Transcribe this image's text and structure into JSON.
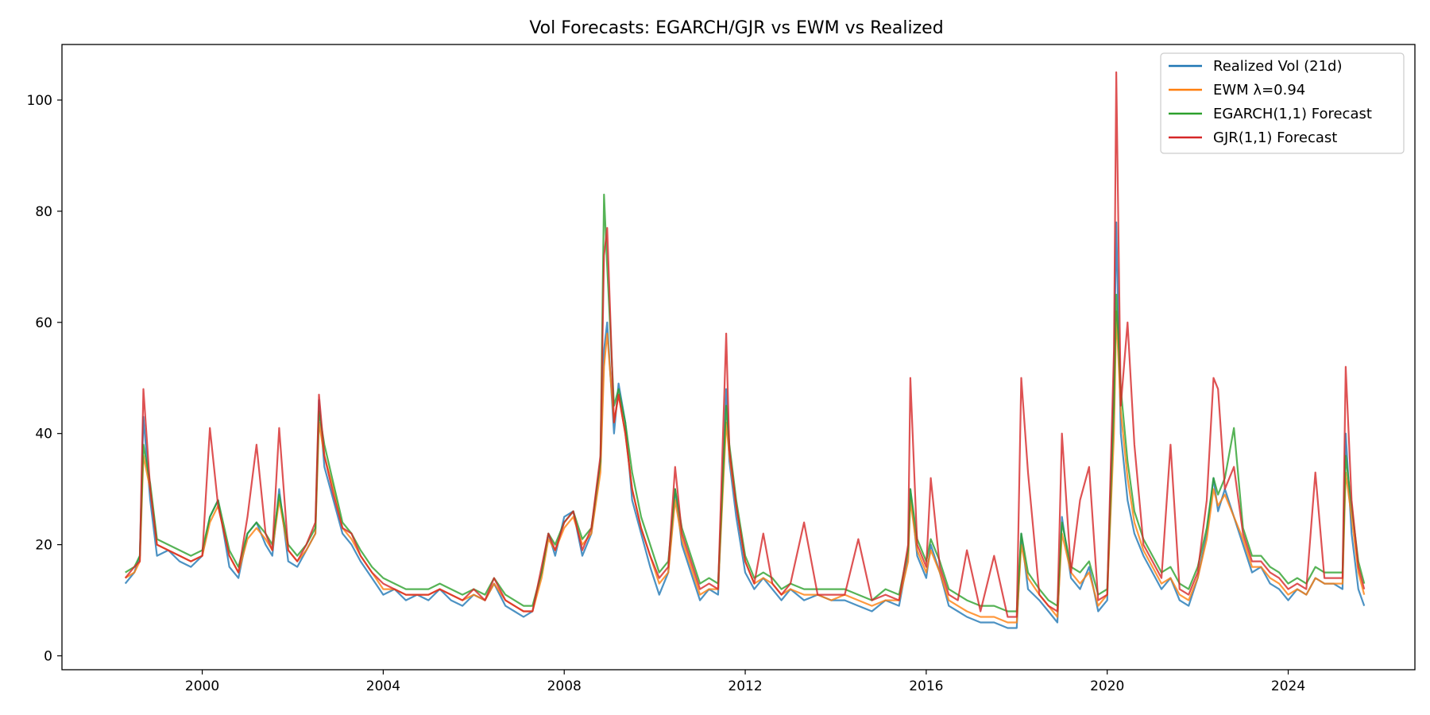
{
  "chart_data": {
    "type": "line",
    "title": "Vol Forecasts: EGARCH/GJR vs EWM vs Realized",
    "xlabel": "",
    "ylabel": "",
    "xlim": [
      1996.9,
      2026.8
    ],
    "ylim": [
      -2.5,
      110.0
    ],
    "xticks": [
      2000,
      2004,
      2008,
      2012,
      2016,
      2020,
      2024
    ],
    "xtick_labels": [
      "2000",
      "2004",
      "2008",
      "2012",
      "2016",
      "2020",
      "2024"
    ],
    "yticks": [
      0,
      20,
      40,
      60,
      80,
      100
    ],
    "ytick_labels": [
      "0",
      "20",
      "40",
      "60",
      "80",
      "100"
    ],
    "grid": false,
    "legend_position": "top-right",
    "x": [
      1998.3,
      1998.5,
      1998.62,
      1998.7,
      1998.85,
      1999.0,
      1999.25,
      1999.5,
      1999.75,
      2000.0,
      2000.17,
      2000.35,
      2000.6,
      2000.8,
      2001.0,
      2001.2,
      2001.4,
      2001.55,
      2001.7,
      2001.9,
      2002.1,
      2002.3,
      2002.5,
      2002.58,
      2002.7,
      2002.9,
      2003.1,
      2003.3,
      2003.5,
      2003.75,
      2004.0,
      2004.25,
      2004.5,
      2004.75,
      2005.0,
      2005.25,
      2005.5,
      2005.75,
      2006.0,
      2006.25,
      2006.45,
      2006.7,
      2006.9,
      2007.1,
      2007.3,
      2007.5,
      2007.65,
      2007.8,
      2008.0,
      2008.2,
      2008.4,
      2008.6,
      2008.8,
      2008.88,
      2008.95,
      2009.1,
      2009.2,
      2009.35,
      2009.5,
      2009.7,
      2009.9,
      2010.1,
      2010.3,
      2010.45,
      2010.6,
      2010.8,
      2011.0,
      2011.2,
      2011.4,
      2011.58,
      2011.65,
      2011.8,
      2012.0,
      2012.2,
      2012.4,
      2012.6,
      2012.8,
      2013.0,
      2013.3,
      2013.6,
      2013.9,
      2014.2,
      2014.5,
      2014.8,
      2015.1,
      2015.4,
      2015.6,
      2015.65,
      2015.8,
      2016.0,
      2016.1,
      2016.3,
      2016.5,
      2016.7,
      2016.9,
      2017.2,
      2017.5,
      2017.8,
      2018.0,
      2018.1,
      2018.25,
      2018.5,
      2018.7,
      2018.9,
      2019.0,
      2019.2,
      2019.4,
      2019.6,
      2019.8,
      2020.0,
      2020.15,
      2020.2,
      2020.3,
      2020.45,
      2020.6,
      2020.8,
      2021.0,
      2021.2,
      2021.4,
      2021.6,
      2021.8,
      2022.0,
      2022.2,
      2022.35,
      2022.45,
      2022.6,
      2022.8,
      2023.0,
      2023.2,
      2023.4,
      2023.6,
      2023.8,
      2024.0,
      2024.2,
      2024.4,
      2024.6,
      2024.8,
      2025.0,
      2025.2,
      2025.27,
      2025.4,
      2025.55,
      2025.68
    ],
    "series": [
      {
        "name": "Realized Vol (21d)",
        "color": "#1f77b4",
        "values": [
          13,
          15,
          18,
          43,
          28,
          18,
          19,
          17,
          16,
          18,
          25,
          28,
          16,
          14,
          22,
          24,
          20,
          18,
          30,
          17,
          16,
          19,
          22,
          46,
          34,
          28,
          22,
          20,
          17,
          14,
          11,
          12,
          10,
          11,
          10,
          12,
          10,
          9,
          11,
          10,
          13,
          9,
          8,
          7,
          8,
          15,
          22,
          18,
          25,
          26,
          18,
          22,
          35,
          55,
          60,
          40,
          49,
          42,
          28,
          22,
          16,
          11,
          15,
          30,
          20,
          15,
          10,
          12,
          11,
          48,
          35,
          25,
          15,
          12,
          14,
          12,
          10,
          12,
          10,
          11,
          10,
          10,
          9,
          8,
          10,
          9,
          18,
          30,
          18,
          14,
          20,
          15,
          9,
          8,
          7,
          6,
          6,
          5,
          5,
          22,
          12,
          10,
          8,
          6,
          25,
          14,
          12,
          16,
          8,
          10,
          50,
          78,
          40,
          28,
          22,
          18,
          15,
          12,
          14,
          10,
          9,
          14,
          22,
          32,
          26,
          30,
          25,
          20,
          15,
          16,
          13,
          12,
          10,
          12,
          11,
          14,
          13,
          13,
          12,
          40,
          22,
          12,
          9
        ]
      },
      {
        "name": "EWM λ=0.94",
        "color": "#ff7f0e",
        "values": [
          14,
          15,
          17,
          36,
          30,
          20,
          19,
          18,
          17,
          18,
          24,
          27,
          18,
          15,
          21,
          23,
          21,
          19,
          28,
          19,
          17,
          19,
          22,
          42,
          36,
          30,
          23,
          21,
          18,
          15,
          12,
          12,
          11,
          11,
          11,
          12,
          11,
          10,
          11,
          10,
          13,
          10,
          9,
          8,
          8,
          14,
          21,
          19,
          23,
          25,
          20,
          22,
          33,
          52,
          58,
          42,
          47,
          40,
          30,
          23,
          18,
          13,
          15,
          28,
          21,
          16,
          11,
          12,
          12,
          42,
          36,
          27,
          17,
          13,
          14,
          13,
          11,
          12,
          11,
          11,
          10,
          11,
          10,
          9,
          10,
          10,
          17,
          28,
          19,
          15,
          19,
          15,
          10,
          9,
          8,
          7,
          7,
          6,
          6,
          20,
          14,
          11,
          9,
          7,
          22,
          15,
          13,
          15,
          9,
          11,
          40,
          62,
          44,
          32,
          24,
          19,
          16,
          13,
          14,
          11,
          10,
          14,
          21,
          30,
          27,
          29,
          25,
          21,
          16,
          16,
          14,
          13,
          11,
          12,
          11,
          14,
          13,
          13,
          13,
          33,
          25,
          15,
          11
        ]
      },
      {
        "name": "EGARCH(1,1) Forecast",
        "color": "#2ca02c",
        "values": [
          15,
          16,
          18,
          38,
          31,
          21,
          20,
          19,
          18,
          19,
          25,
          28,
          19,
          16,
          22,
          24,
          22,
          20,
          29,
          20,
          18,
          20,
          23,
          44,
          38,
          31,
          24,
          22,
          19,
          16,
          14,
          13,
          12,
          12,
          12,
          13,
          12,
          11,
          12,
          11,
          14,
          11,
          10,
          9,
          9,
          15,
          22,
          20,
          24,
          26,
          21,
          23,
          35,
          83,
          70,
          45,
          48,
          42,
          33,
          25,
          20,
          15,
          17,
          30,
          23,
          18,
          13,
          14,
          13,
          45,
          38,
          28,
          18,
          14,
          15,
          14,
          12,
          13,
          12,
          12,
          12,
          12,
          11,
          10,
          12,
          11,
          19,
          30,
          21,
          17,
          21,
          17,
          12,
          11,
          10,
          9,
          9,
          8,
          8,
          22,
          15,
          12,
          10,
          9,
          24,
          16,
          15,
          17,
          11,
          12,
          45,
          65,
          48,
          35,
          26,
          21,
          18,
          15,
          16,
          13,
          12,
          16,
          23,
          32,
          29,
          32,
          41,
          23,
          18,
          18,
          16,
          15,
          13,
          14,
          13,
          16,
          15,
          15,
          15,
          36,
          27,
          17,
          13
        ]
      },
      {
        "name": "GJR(1,1) Forecast",
        "color": "#d62728",
        "values": [
          14,
          16,
          17,
          48,
          30,
          20,
          19,
          18,
          17,
          18,
          41,
          27,
          18,
          15,
          25,
          38,
          22,
          19,
          41,
          19,
          17,
          20,
          24,
          47,
          36,
          29,
          23,
          22,
          18,
          15,
          13,
          12,
          11,
          11,
          11,
          12,
          11,
          10,
          12,
          10,
          14,
          10,
          9,
          8,
          8,
          16,
          22,
          19,
          24,
          26,
          19,
          23,
          36,
          72,
          77,
          42,
          47,
          40,
          30,
          23,
          18,
          14,
          16,
          34,
          22,
          17,
          12,
          13,
          12,
          58,
          37,
          27,
          17,
          13,
          22,
          13,
          11,
          13,
          24,
          11,
          11,
          11,
          21,
          10,
          11,
          10,
          20,
          50,
          20,
          16,
          32,
          16,
          11,
          10,
          19,
          8,
          18,
          7,
          7,
          50,
          33,
          11,
          9,
          8,
          40,
          15,
          28,
          34,
          10,
          11,
          55,
          105,
          45,
          60,
          38,
          20,
          17,
          14,
          38,
          12,
          11,
          15,
          28,
          50,
          48,
          30,
          34,
          22,
          17,
          17,
          15,
          14,
          12,
          13,
          12,
          33,
          14,
          14,
          14,
          52,
          28,
          16,
          12
        ]
      }
    ]
  }
}
